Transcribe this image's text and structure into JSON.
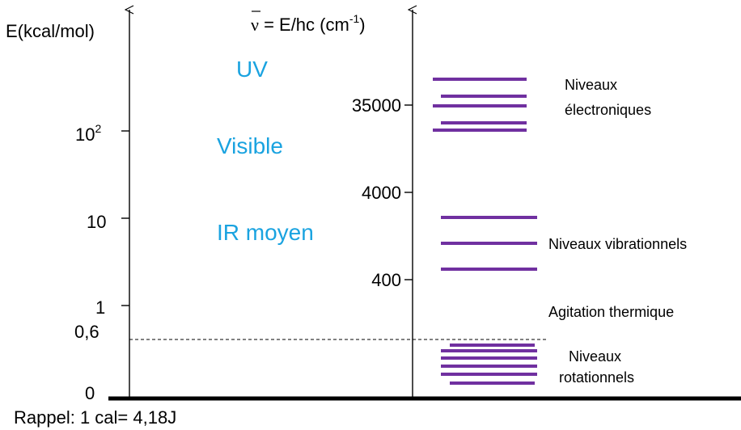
{
  "left_axis": {
    "title": "E(kcal/mol)",
    "ticks": [
      {
        "base": "10",
        "sup": "2"
      },
      {
        "base": "10",
        "sup": ""
      },
      {
        "base": "1",
        "sup": ""
      },
      {
        "base": "0,6",
        "sup": ""
      },
      {
        "base": "0",
        "sup": ""
      }
    ]
  },
  "right_axis": {
    "title_symbol": "ν",
    "title_text": " = E/hc (cm",
    "title_sup": "-1",
    "title_close": ")",
    "ticks": [
      "35000",
      "4000",
      "400"
    ]
  },
  "regions": [
    "UV",
    "Visible",
    "IR moyen"
  ],
  "level_groups": [
    {
      "label_lines": [
        "Niveaux",
        "électroniques"
      ],
      "count": 5
    },
    {
      "label_lines": [
        "Niveaux vibrationnels"
      ],
      "count": 3
    },
    {
      "label_lines": [
        "Niveaux",
        "rotationnels"
      ],
      "count": 6
    }
  ],
  "thermal_label": "Agitation thermique",
  "note": "Rappel: 1 cal= 4,18J",
  "colors": {
    "levels": "#7030a0",
    "regions": "#1aa3e0",
    "axes": "#000000"
  }
}
